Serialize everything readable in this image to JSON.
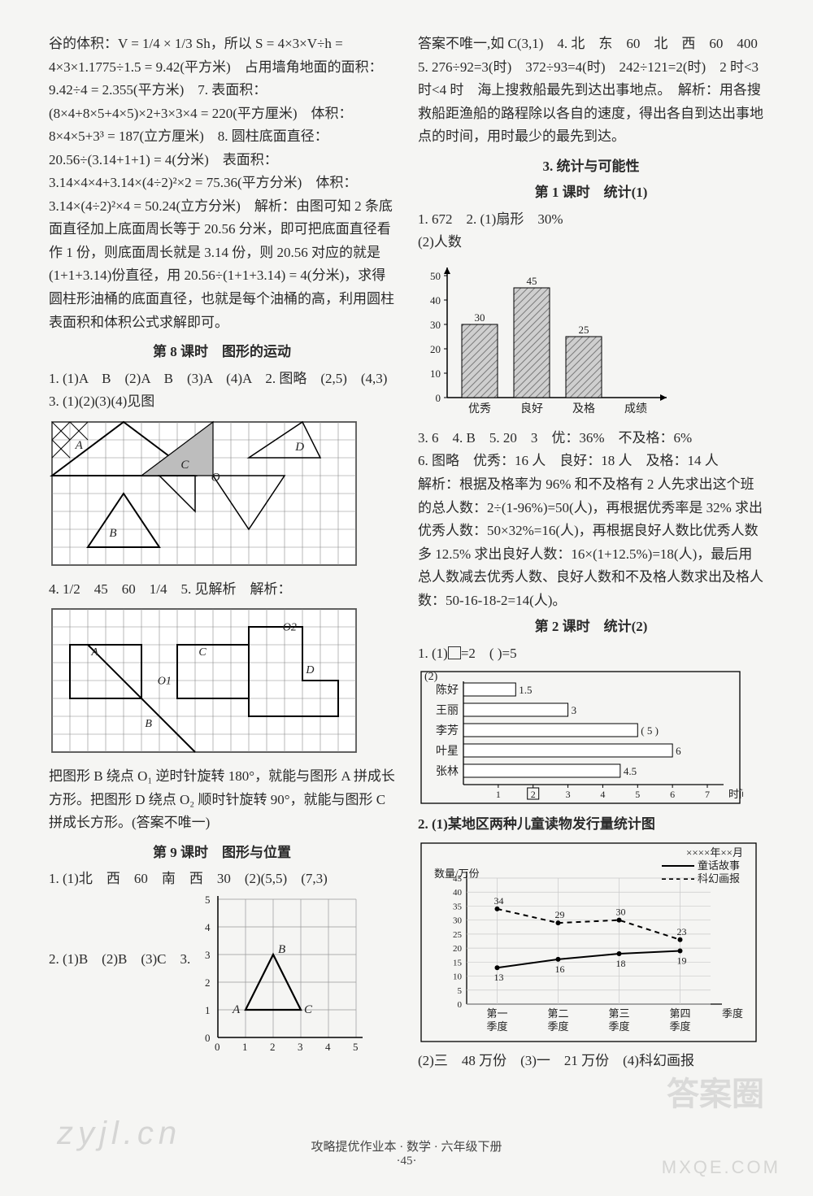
{
  "left": {
    "para1": "谷的体积：V = 1/4 × 1/3 Sh，所以 S = 4×3×V÷h = 4×3×1.1775÷1.5 = 9.42(平方米)　占用墙角地面的面积：9.42÷4 = 2.355(平方米)　7. 表面积：(8×4+8×5+4×5)×2+3×3×4 = 220(平方厘米)　体积：8×4×5+3³ = 187(立方厘米)　8. 圆柱底面直径：20.56÷(3.14+1+1) = 4(分米)　表面积：3.14×4×4+3.14×(4÷2)²×2 = 75.36(平方分米)　体积：3.14×(4÷2)²×4 = 50.24(立方分米)　解析：由图可知 2 条底面直径加上底面周长等于 20.56 分米，即可把底面直径看作 1 份，则底面周长就是 3.14 份，则 20.56 对应的就是(1+1+3.14)份直径，用 20.56÷(1+1+3.14) = 4(分米)，求得圆柱形油桶的底面直径，也就是每个油桶的高，利用圆柱表面积和体积公式求解即可。",
    "s8_title": "第 8 课时　图形的运动",
    "s8_line1": "1. (1)A　B　(2)A　B　(3)A　(4)A　2. 图略　(2,5)　(4,3)　3. (1)(2)(3)(4)见图",
    "grid1": {
      "cols": 17,
      "rows": 8,
      "cell": 22,
      "labels": {
        "A": [
          1.3,
          1.5
        ],
        "B": [
          3.2,
          6.4
        ],
        "C": [
          7.2,
          2.6
        ],
        "O": [
          8.9,
          3.3
        ],
        "D": [
          13.6,
          1.6
        ]
      },
      "mainTri": [
        [
          0,
          3
        ],
        [
          4,
          0
        ],
        [
          8,
          3
        ]
      ],
      "triFilled": [
        [
          5,
          3
        ],
        [
          9,
          0
        ],
        [
          9,
          3
        ]
      ],
      "triB": [
        [
          2,
          7
        ],
        [
          4,
          4
        ],
        [
          6,
          7
        ]
      ],
      "triC": [
        [
          6,
          3
        ],
        [
          8,
          3
        ],
        [
          8,
          5
        ]
      ],
      "triR": [
        [
          9,
          3
        ],
        [
          13,
          3
        ],
        [
          11,
          6
        ]
      ],
      "triD": [
        [
          11,
          2
        ],
        [
          15,
          2
        ],
        [
          14,
          0
        ]
      ],
      "shadeCells": [
        [
          0,
          0
        ],
        [
          1,
          0
        ],
        [
          0,
          1
        ]
      ]
    },
    "s8_line4": "4. 1/2　45　60　1/4　5. 见解析　解析：",
    "grid2": {
      "cols": 17,
      "rows": 8,
      "cell": 22,
      "labels": {
        "A": [
          2.2,
          2.6
        ],
        "B": [
          5.2,
          6.6
        ],
        "C": [
          8.2,
          2.6
        ],
        "O1": [
          5.9,
          4.2
        ],
        "O2": [
          12.9,
          1.2
        ],
        "D": [
          14.2,
          3.6
        ]
      },
      "rectL": [
        [
          1,
          2
        ],
        [
          5,
          2
        ],
        [
          5,
          5
        ],
        [
          1,
          5
        ]
      ],
      "rectR": [
        [
          7,
          2
        ],
        [
          11,
          2
        ],
        [
          11,
          5
        ],
        [
          7,
          5
        ]
      ],
      "lShape": [
        [
          11,
          1
        ],
        [
          14,
          1
        ],
        [
          14,
          4
        ],
        [
          16,
          4
        ],
        [
          16,
          6
        ],
        [
          11,
          6
        ]
      ],
      "diag": [
        [
          2,
          2
        ],
        [
          8,
          8
        ]
      ],
      "diagShort": [
        [
          5,
          3
        ],
        [
          7,
          5
        ]
      ]
    },
    "para2": "把图形 B 绕点 O₁ 逆时针旋转 180°，就能与图形 A 拼成长方形。把图形 D 绕点 O₂ 顺时针旋转 90°，就能与图形 C 拼成长方形。(答案不唯一)",
    "s9_title": "第 9 课时　图形与位置",
    "s9_line1": "1. (1)北　西　60　南　西　30　(2)(5,5)　(7,3)",
    "s9_line2": "2. (1)B　(2)B　(3)C　3.",
    "grid3": {
      "size": 5,
      "cell": 34,
      "tri": [
        [
          1,
          1
        ],
        [
          3,
          1
        ],
        [
          2,
          3
        ]
      ],
      "ptA": [
        1,
        1
      ],
      "ptB": [
        2,
        3
      ],
      "ptC": [
        3,
        1
      ]
    }
  },
  "right": {
    "para1": "答案不唯一,如 C(3,1)　4. 北　东　60　北　西　60　400　5. 276÷92=3(时)　372÷93=4(时)　242÷121=2(时)　2 时<3 时<4 时　海上搜救船最先到达出事地点。　解析：用各搜救船距渔船的路程除以各自的速度，得出各自到达出事地点的时间，用时最少的最先到达。",
    "s3_title": "3. 统计与可能性",
    "c1_title": "第 1 课时　统计(1)",
    "c1_line1": "1. 672　2. (1)扇形　30%",
    "c1_line2": "(2)人数",
    "bar_chart": {
      "ymax": 50,
      "ystep": 10,
      "categories": [
        "优秀",
        "良好",
        "及格",
        "成绩"
      ],
      "values": [
        30,
        45,
        25,
        null
      ],
      "labels": [
        "30",
        "45",
        "25",
        ""
      ],
      "bar_color": "#b7b7b7",
      "hatch": true,
      "axis_fontsize": 14
    },
    "c1_line3": "3. 6　4. B　5. 20　3　优：36%　不及格：6%",
    "c1_line4": "6. 图略　优秀：16 人　良好：18 人　及格：14 人",
    "c1_para": "解析：根据及格率为 96% 和不及格有 2 人先求出这个班的总人数：2÷(1-96%)=50(人)，再根据优秀率是 32% 求出优秀人数：50×32%=16(人)，再根据良好人数比优秀人数多 12.5% 求出良好人数：16×(1+12.5%)=18(人)，最后用总人数减去优秀人数、良好人数和不及格人数求出及格人数：50-16-18-2=14(人)。",
    "c2_title": "第 2 课时　统计(2)",
    "c2_line1_a": "1. (1)",
    "c2_line1_b": "=2　( )=5",
    "hbar_chart": {
      "categories": [
        "陈好",
        "王丽",
        "李芳",
        "叶星",
        "张林"
      ],
      "values": [
        1.5,
        3,
        5,
        6,
        4.5
      ],
      "display_values": [
        "1.5",
        "3",
        "( 5 )",
        "6",
        "4.5"
      ],
      "xmax": 7,
      "xstep": 1,
      "xlabel": "时间/时"
    },
    "c2_line2": "2. (1)某地区两种儿童读物发行量统计图",
    "line_chart": {
      "sub1": "××××年××月",
      "legend": {
        "solid": "童话故事",
        "dash": "科幻画报"
      },
      "ylabel": "数量/万份",
      "yticks": [
        0,
        5,
        10,
        15,
        20,
        25,
        30,
        35,
        40,
        45
      ],
      "categories": [
        "第一季度",
        "第二季度",
        "第三季度",
        "第四季度",
        "季度"
      ],
      "solid": [
        13,
        16,
        18,
        19
      ],
      "dash": [
        34,
        29,
        30,
        23
      ],
      "solid_labels": [
        "13",
        "16",
        "18",
        "19"
      ],
      "dash_labels": [
        "34",
        "29",
        "30",
        "23"
      ]
    },
    "c2_line3": "(2)三　48 万份　(3)一　21 万份　(4)科幻画报"
  },
  "footer": "攻略提优作业本 · 数学 · 六年级下册",
  "page_num": "·45·",
  "wm_left": "zyjl.cn",
  "wm_r1": "答案圈",
  "wm_r2": "MXQE.COM"
}
